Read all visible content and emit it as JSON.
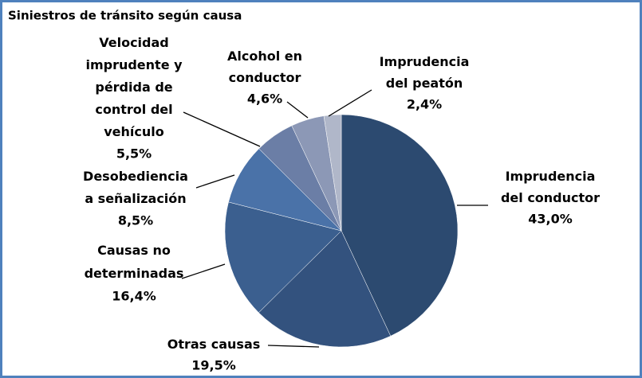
{
  "chart_data": {
    "type": "pie",
    "title": "Siniestros de tránsito según causa",
    "categories": [
      "Imprudencia\ndel conductor",
      "Otras causas",
      "Causas  no\ndeterminadas",
      "Desobediencia\na señalización",
      "Velocidad\nimprudente y\npérdida de\ncontrol del\nvehículo",
      "Alcohol  en\nconductor",
      "Imprudencia\ndel peatón"
    ],
    "values": [
      43.0,
      19.5,
      16.4,
      8.5,
      5.5,
      4.6,
      2.4
    ],
    "value_labels": [
      "43,0%",
      "19,5%",
      "16,4%",
      "8,5%",
      "5,5%",
      "4,6%",
      "2,4%"
    ],
    "colors": [
      "#2c4a70",
      "#33527e",
      "#3b5f8f",
      "#4a72a8",
      "#6b7ea6",
      "#8c98b6",
      "#b0b7c9"
    ]
  }
}
